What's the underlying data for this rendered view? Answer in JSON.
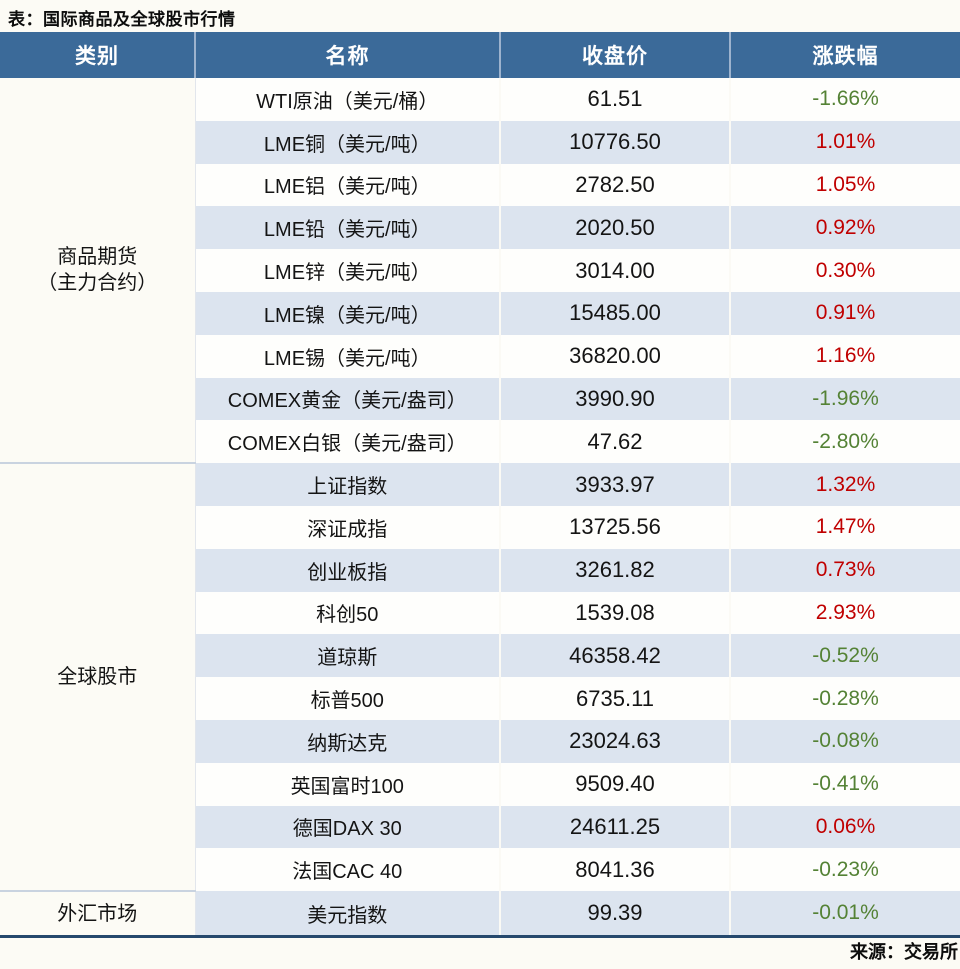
{
  "title": "表：国际商品及全球股市行情",
  "source": "来源：交易所",
  "colors": {
    "header_bg": "#3B6A99",
    "band_row_bg": "#DCE4EF",
    "up_red": "#C00000",
    "down_green": "#548235",
    "bottom_border": "#26496D"
  },
  "chart_data": {
    "type": "table",
    "title": "表：国际商品及全球股市行情",
    "columns": [
      "类别",
      "名称",
      "收盘价",
      "涨跌幅"
    ],
    "groups": [
      {
        "category": "商品期货（主力合约）",
        "category_lines": [
          "商品期货",
          "（主力合约）"
        ],
        "rows": [
          {
            "name": "WTI原油（美元/桶）",
            "close": "61.51",
            "change": "-1.66%"
          },
          {
            "name": "LME铜（美元/吨）",
            "close": "10776.50",
            "change": "1.01%"
          },
          {
            "name": "LME铝（美元/吨）",
            "close": "2782.50",
            "change": "1.05%"
          },
          {
            "name": "LME铅（美元/吨）",
            "close": "2020.50",
            "change": "0.92%"
          },
          {
            "name": "LME锌（美元/吨）",
            "close": "3014.00",
            "change": "0.30%"
          },
          {
            "name": "LME镍（美元/吨）",
            "close": "15485.00",
            "change": "0.91%"
          },
          {
            "name": "LME锡（美元/吨）",
            "close": "36820.00",
            "change": "1.16%"
          },
          {
            "name": "COMEX黄金（美元/盎司）",
            "close": "3990.90",
            "change": "-1.96%"
          },
          {
            "name": "COMEX白银（美元/盎司）",
            "close": "47.62",
            "change": "-2.80%"
          }
        ]
      },
      {
        "category": "全球股市",
        "category_lines": [
          "全球股市"
        ],
        "rows": [
          {
            "name": "上证指数",
            "close": "3933.97",
            "change": "1.32%"
          },
          {
            "name": "深证成指",
            "close": "13725.56",
            "change": "1.47%"
          },
          {
            "name": "创业板指",
            "close": "3261.82",
            "change": "0.73%"
          },
          {
            "name": "科创50",
            "close": "1539.08",
            "change": "2.93%"
          },
          {
            "name": "道琼斯",
            "close": "46358.42",
            "change": "-0.52%"
          },
          {
            "name": "标普500",
            "close": "6735.11",
            "change": "-0.28%"
          },
          {
            "name": "纳斯达克",
            "close": "23024.63",
            "change": "-0.08%"
          },
          {
            "name": "英国富时100",
            "close": "9509.40",
            "change": "-0.41%"
          },
          {
            "name": "德国DAX 30",
            "close": "24611.25",
            "change": "0.06%"
          },
          {
            "name": "法国CAC 40",
            "close": "8041.36",
            "change": "-0.23%"
          }
        ]
      },
      {
        "category": "外汇市场",
        "category_lines": [
          "外汇市场"
        ],
        "rows": [
          {
            "name": "美元指数",
            "close": "99.39",
            "change": "-0.01%"
          }
        ]
      }
    ]
  }
}
